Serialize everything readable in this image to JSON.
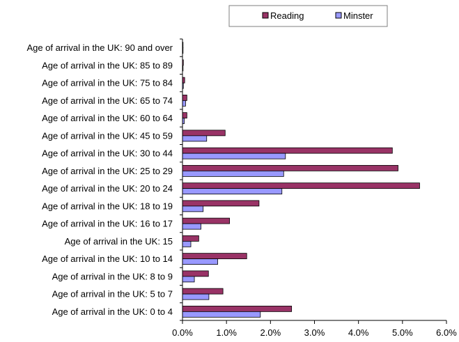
{
  "chart_data": {
    "type": "bar",
    "orientation": "horizontal",
    "categories": [
      "Age of arrival in the UK: 90 and over",
      "Age of arrival in the UK: 85 to 89",
      "Age of arrival in the UK: 75 to 84",
      "Age of arrival in the UK: 65 to 74",
      "Age of arrival in the UK: 60 to 64",
      "Age of arrival in the UK: 45 to 59",
      "Age of arrival in the UK: 30 to 44",
      "Age of arrival in the UK: 25 to 29",
      "Age of arrival in the UK: 20 to 24",
      "Age of arrival in the UK: 18 to 19",
      "Age of arrival in the UK: 16 to 17",
      "Age of arrival in the UK: 15",
      "Age of arrival in the UK: 10 to 14",
      "Age of arrival in the UK: 8 to 9",
      "Age of arrival in the UK: 5 to 7",
      "Age of arrival in the UK: 0 to 4"
    ],
    "series": [
      {
        "name": "Reading",
        "color": "#993366",
        "values": [
          0.01,
          0.02,
          0.05,
          0.1,
          0.1,
          0.97,
          4.77,
          4.9,
          5.39,
          1.74,
          1.07,
          0.37,
          1.46,
          0.59,
          0.92,
          2.48
        ]
      },
      {
        "name": "Minster",
        "color": "#9999ff",
        "values": [
          0.0,
          0.01,
          0.02,
          0.07,
          0.04,
          0.55,
          2.34,
          2.3,
          2.26,
          0.47,
          0.42,
          0.19,
          0.8,
          0.27,
          0.6,
          1.77
        ]
      }
    ],
    "xlim": [
      0,
      6
    ],
    "xticks": [
      "0.0%",
      "1.0%",
      "2.0%",
      "3.0%",
      "4.0%",
      "5.0%",
      "6.0%"
    ],
    "legend": "top-right",
    "grid": false,
    "title": "",
    "xlabel": "",
    "ylabel": ""
  }
}
